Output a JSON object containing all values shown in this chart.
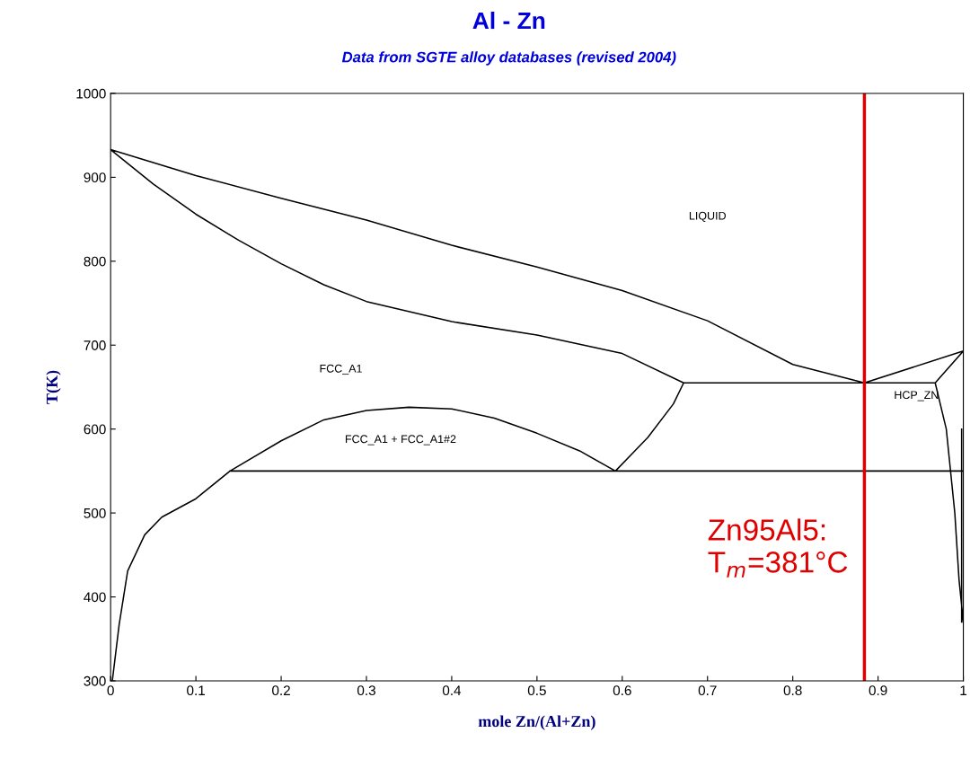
{
  "chart_data": {
    "type": "line",
    "title": "Al - Zn",
    "subtitle": "Data from SGTE alloy databases (revised 2004)",
    "xlabel": "mole Zn/(Al+Zn)",
    "ylabel": "T(K)",
    "xlim": [
      0,
      1
    ],
    "ylim": [
      300,
      1000
    ],
    "xticks": [
      0,
      0.1,
      0.2,
      0.3,
      0.4,
      0.5,
      0.6,
      0.7,
      0.8,
      0.9,
      1
    ],
    "yticks": [
      300,
      400,
      500,
      600,
      700,
      800,
      900,
      1000
    ],
    "grid": false,
    "legend": false,
    "series": [
      {
        "color": "#000000",
        "x": [
          0,
          0.1,
          0.2,
          0.3,
          0.4,
          0.5,
          0.6,
          0.7,
          0.8,
          0.884,
          1.0,
          null,
          0,
          0.05,
          0.1,
          0.15,
          0.2,
          0.25,
          0.3,
          0.4,
          0.5,
          0.6,
          0.672,
          0.967,
          1.0,
          null,
          0.967,
          0.98,
          0.99,
          0.995,
          1.0,
          null,
          0.002,
          0.01,
          0.02,
          0.04,
          0.06,
          0.1,
          0.14,
          0.2,
          0.25,
          0.3,
          0.35,
          0.4,
          0.45,
          0.5,
          0.55,
          0.592,
          0.63,
          0.66,
          0.672,
          null,
          0.14,
          1.0,
          null,
          0.998,
          0.998
        ],
        "values": [
          933,
          902,
          875,
          849,
          819,
          793,
          765,
          729,
          677,
          655,
          693,
          null,
          933,
          892,
          856,
          825,
          797,
          772,
          752,
          728,
          712,
          690,
          655,
          655,
          693,
          null,
          655,
          600,
          500,
          420,
          370,
          null,
          300,
          367,
          431,
          474,
          495,
          517,
          550,
          586,
          611,
          622,
          626,
          624,
          613,
          595,
          574,
          550,
          590,
          630,
          655,
          null,
          550,
          550,
          null,
          600,
          370
        ]
      }
    ],
    "ref_lines": [
      {
        "axis": "x",
        "value": 0.884,
        "color": "#e00000"
      }
    ],
    "annotations": [
      "LIQUID",
      "FCC_A1",
      "FCC_A1 + FCC_A1#2",
      "HCP_ZN",
      "Zn95Al5:\nT$_{m}$=381°C"
    ]
  }
}
